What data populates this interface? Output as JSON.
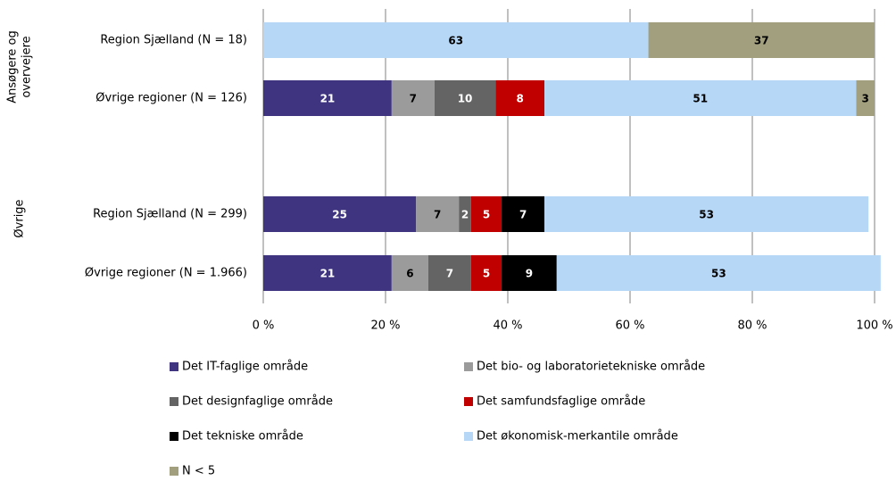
{
  "chart_data": {
    "type": "stacked-barh",
    "categories": [
      "Region Sjælland (N = 18)",
      "Øvrige regioner (N = 126)",
      "Region Sjælland (N = 299)",
      "Øvrige regioner (N = 1.966)"
    ],
    "group_labels": [
      [
        "Ansøgere og",
        "overvejere"
      ],
      [
        "Øvrige"
      ]
    ],
    "series": [
      {
        "name": "Det IT-faglige område",
        "color": "#3e3480",
        "values": [
          null,
          21,
          25,
          21
        ]
      },
      {
        "name": "Det bio- og laboratorietekniske område",
        "color": "#9b9b9b",
        "values": [
          null,
          7,
          7,
          6
        ]
      },
      {
        "name": "Det designfaglige område",
        "color": "#646464",
        "values": [
          null,
          10,
          2,
          7
        ]
      },
      {
        "name": "Det samfundsfaglige område",
        "color": "#c00000",
        "values": [
          null,
          8,
          5,
          5
        ]
      },
      {
        "name": "Det tekniske område",
        "color": "#000000",
        "values": [
          null,
          null,
          7,
          9
        ]
      },
      {
        "name": "Det økonomisk-merkantile område",
        "color": "#b7d7f7",
        "values": [
          63,
          51,
          53,
          53
        ]
      },
      {
        "name": "N < 5",
        "color": "#a19f7d",
        "values": [
          37,
          3,
          null,
          null
        ]
      }
    ],
    "xlim": [
      0,
      100
    ],
    "xticks": [
      {
        "value": 0,
        "label": "0 %"
      },
      {
        "value": 20,
        "label": "20 %"
      },
      {
        "value": 40,
        "label": "40 %"
      },
      {
        "value": 60,
        "label": "60 %"
      },
      {
        "value": 80,
        "label": "80 %"
      },
      {
        "value": 100,
        "label": "100 %"
      }
    ],
    "grid": true
  }
}
